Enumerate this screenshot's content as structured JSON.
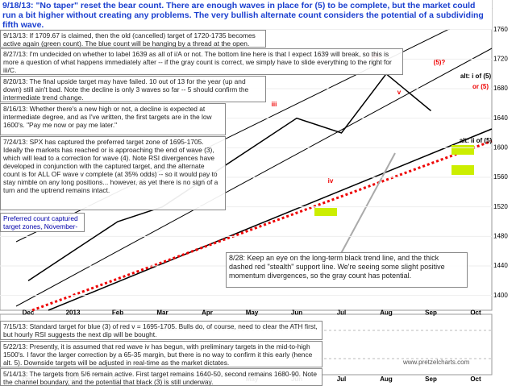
{
  "chart_data": {
    "type": "line",
    "title": "9/18/13:  \"No taper\" reset the bear count.  There are enough waves in place for (5) to be complete, but the market could run a bit higher without creating any problems.  The very bullish alternate count considers the potential of a subdividing fifth wave.",
    "notes": [
      "9/13/13: If 1709.67 is claimed, then the old (cancelled) target of 1720-1735 becomes active again (green count).  The blue count will be hanging by a thread at the open.",
      "8/27/13: I'm undecided on whether to label 1639 as all of i/A or not. The bottom line here is that I expect 1639 will break, so this is more a question of what happens immediately after -- if the gray count is correct, we simply have to slide everything to the right for iii/C.",
      "8/20/13:  The final upside target may have failed.  10 out of 13 for the year (up and down) still ain't bad.  Note the decline is only 3 waves so far -- 5 should confirm the intermediate trend change.",
      "8/16/13: Whether there's a new high or not, a decline is expected at intermediate degree, and as I've written, the first targets are in the low 1600's.  \"Pay me now or pay me later.\"",
      "7/24/13:  SPX has captured the preferred target zone of 1695-1705.  Ideally the markets has reached or is approaching the end of wave (3), which will lead to a correction for wave (4).  Note RSI divergences have developed in conjunction with the captured target, and the alternate count is for ALL OF wave v complete (at 35% odds) -- so it would pay to stay nimble on any long positions... however, as yet there is no sign of a turn and the uptrend remains intact."
    ],
    "target_note": "Preferred count captured target zones, November-January",
    "trend_note": "8/28:  Keep an eye on the long-term black trend line, and the thick dashed red \"stealth\" support line.  We're seeing some slight positive momentum divergences, so the gray count has potential.",
    "bottom_notes": [
      "7/15/13: Standard target for blue (3) of red v = 1695-1705.  Bulls do, of course, need to clear the ATH first, but hourly RSI suggests the next dip will be bought.",
      "5/22/13:  Presently, it is assumed that red wave iv has begun, with preliminary targets in the mid-to-high 1500's.  I favor the larger correction by a 65-35 margin, but there is no way to confirm it this early (hence alt. 5).  Downside targets will be adjusted in real-time as the market dictates.",
      "5/14/13:  The targets from 5/6 remain active.  First target remains 1640-50, second remains 1680-90.  Note the channel boundary, and the potential that black (3) is still underway."
    ],
    "site": "www.pretzelcharts.com",
    "wave_labels": [
      "alt: i of (5)",
      "or (5)",
      "alt: ii of (5)",
      "(5)?",
      "(3)",
      "iii",
      "iv",
      "v"
    ],
    "categories": [
      "Dec",
      "2013",
      "Feb",
      "Mar",
      "Apr",
      "May",
      "Jun",
      "Jul",
      "Aug",
      "Sep",
      "Oct"
    ],
    "values": [
      1420,
      1460,
      1500,
      1520,
      1560,
      1600,
      1640,
      1620,
      1700,
      1650,
      null
    ],
    "color": "#000000",
    "ylim": [
      1380,
      1800
    ],
    "yticks": [
      1400,
      1440,
      1480,
      1520,
      1560,
      1600,
      1640,
      1680,
      1720,
      1760
    ],
    "grid": true
  }
}
